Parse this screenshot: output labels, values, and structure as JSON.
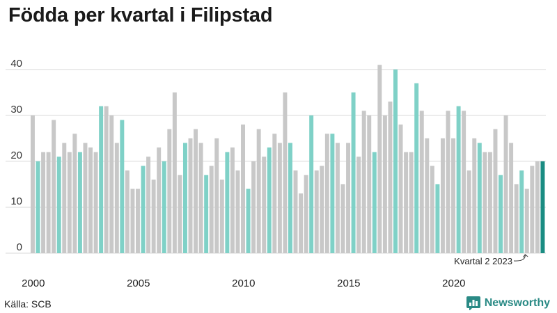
{
  "title": "Födda per kvartal i Filipstad",
  "source": "Källa: SCB",
  "brand": "Newsworthy",
  "colors": {
    "highlight": "#7fd1c7",
    "default": "#c8c8c8",
    "latest": "#1a8c82",
    "brand": "#2a8a85"
  },
  "chart_data": {
    "type": "bar",
    "ylim": [
      0,
      43
    ],
    "yticks": [
      "0",
      "10",
      "20",
      "30",
      "40"
    ],
    "xticks": [
      {
        "label": "2000",
        "index": 0
      },
      {
        "label": "2005",
        "index": 20
      },
      {
        "label": "2010",
        "index": 40
      },
      {
        "label": "2015",
        "index": 60
      },
      {
        "label": "2020",
        "index": 80
      }
    ],
    "quarter": [
      1,
      2,
      3,
      4,
      1,
      2,
      3,
      4,
      1,
      2,
      3,
      4,
      1,
      2,
      3,
      4,
      1,
      2,
      3,
      4,
      1,
      2,
      3,
      4,
      1,
      2,
      3,
      4,
      1,
      2,
      3,
      4,
      1,
      2,
      3,
      4,
      1,
      2,
      3,
      4,
      1,
      2,
      3,
      4,
      1,
      2,
      3,
      4,
      1,
      2,
      3,
      4,
      1,
      2,
      3,
      4,
      1,
      2,
      3,
      4,
      1,
      2,
      3,
      4,
      1,
      2,
      3,
      4,
      1,
      2,
      3,
      4,
      1,
      2,
      3,
      4,
      1,
      2,
      3,
      4,
      1,
      2,
      3,
      4,
      1,
      2,
      3,
      4,
      1,
      2,
      3,
      4,
      1,
      2,
      3,
      4,
      1,
      2
    ],
    "values": [
      30,
      20,
      22,
      22,
      29,
      21,
      24,
      22,
      26,
      22,
      24,
      23,
      22,
      32,
      32,
      30,
      24,
      29,
      18,
      14,
      14,
      19,
      21,
      16,
      23,
      20,
      27,
      35,
      17,
      24,
      25,
      27,
      24,
      17,
      19,
      25,
      16,
      22,
      23,
      18,
      28,
      14,
      20,
      27,
      21,
      23,
      26,
      24,
      35,
      24,
      18,
      13,
      17,
      30,
      18,
      19,
      26,
      26,
      24,
      15,
      24,
      35,
      21,
      31,
      30,
      22,
      41,
      30,
      33,
      40,
      28,
      22,
      22,
      37,
      31,
      25,
      19,
      15,
      25,
      31,
      25,
      32,
      31,
      18,
      25,
      24,
      22,
      22,
      27,
      17,
      30,
      24,
      15,
      18,
      14,
      19,
      20,
      20
    ],
    "annotation": "Kvartal 2 2023"
  }
}
